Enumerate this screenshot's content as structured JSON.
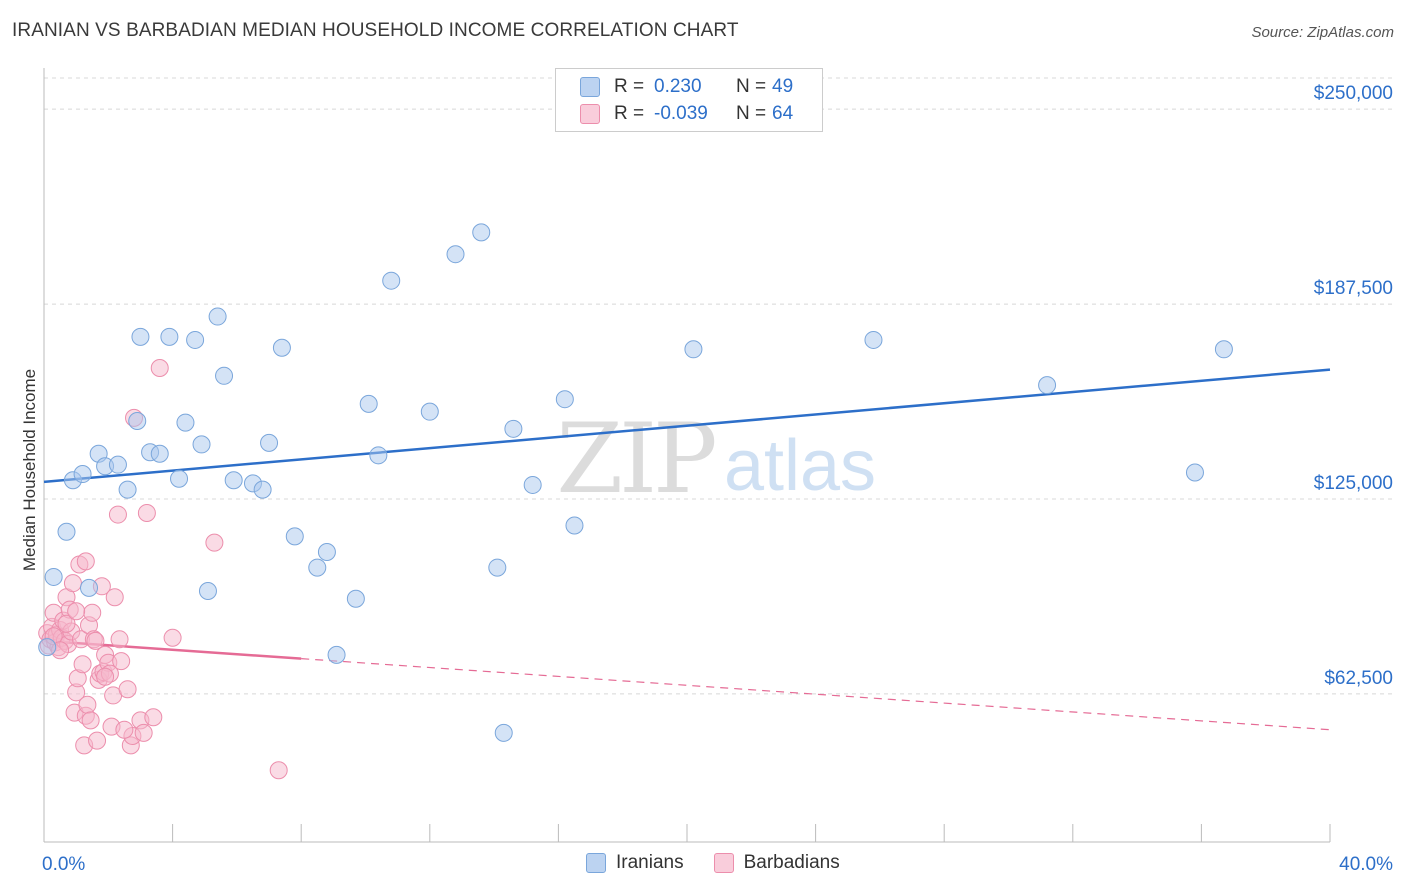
{
  "title": "IRANIAN VS BARBADIAN MEDIAN HOUSEHOLD INCOME CORRELATION CHART",
  "source": "Source: ZipAtlas.com",
  "colors": {
    "iranians_fill": "#aac8ee",
    "iranians_stroke": "#7aa6db",
    "iranians_line": "#2d6fc9",
    "barbadians_fill": "#f6b7cb",
    "barbadians_stroke": "#ec8eac",
    "barbadians_line": "#e56b95",
    "axis_value": "#2d6fc9",
    "grid": "#d8d8d8"
  },
  "legend_top": {
    "rows": [
      {
        "r_label": "R =",
        "r_value": "0.230",
        "n_label": "N =",
        "n_value": "49"
      },
      {
        "r_label": "R =",
        "r_value": "-0.039",
        "n_label": "N =",
        "n_value": "64"
      }
    ]
  },
  "legend_bottom": {
    "items": [
      {
        "label": "Iranians"
      },
      {
        "label": "Barbadians"
      }
    ]
  },
  "watermark": {
    "zip": "ZIP",
    "atlas": "atlas"
  },
  "chart_data": {
    "type": "scatter",
    "title": "IRANIAN VS BARBADIAN MEDIAN HOUSEHOLD INCOME CORRELATION CHART",
    "xlabel": "",
    "ylabel": "Median Household Income",
    "xlim": [
      0,
      40
    ],
    "ylim": [
      15000,
      260000
    ],
    "x_tick_labels": [
      {
        "value": 0,
        "label": "0.0%"
      },
      {
        "value": 40,
        "label": "40.0%"
      }
    ],
    "y_tick_labels": [
      {
        "value": 62500,
        "label": "$62,500"
      },
      {
        "value": 125000,
        "label": "$125,000"
      },
      {
        "value": 187500,
        "label": "$187,500"
      },
      {
        "value": 250000,
        "label": "$250,000"
      }
    ],
    "x_minor_ticks": [
      4,
      8,
      12,
      16,
      20,
      24,
      28,
      32,
      36,
      40
    ],
    "grid": true,
    "series": [
      {
        "name": "Iranians",
        "r": 0.23,
        "n": 49,
        "trend": {
          "x": [
            0,
            40
          ],
          "y": [
            130500,
            166500
          ],
          "dashed_from": null
        },
        "points": [
          [
            0.3,
            100000
          ],
          [
            0.7,
            114500
          ],
          [
            0.9,
            131000
          ],
          [
            1.2,
            133000
          ],
          [
            1.4,
            96500
          ],
          [
            1.7,
            139500
          ],
          [
            1.9,
            135500
          ],
          [
            2.3,
            136000
          ],
          [
            2.6,
            128000
          ],
          [
            2.9,
            150000
          ],
          [
            3.0,
            177000
          ],
          [
            3.3,
            140000
          ],
          [
            3.6,
            139500
          ],
          [
            3.9,
            177000
          ],
          [
            4.2,
            131500
          ],
          [
            4.4,
            149500
          ],
          [
            4.7,
            176000
          ],
          [
            4.9,
            142500
          ],
          [
            5.1,
            95500
          ],
          [
            5.4,
            183500
          ],
          [
            5.6,
            164500
          ],
          [
            5.9,
            131000
          ],
          [
            6.5,
            130000
          ],
          [
            6.8,
            128000
          ],
          [
            7.0,
            143000
          ],
          [
            7.4,
            173500
          ],
          [
            7.8,
            113000
          ],
          [
            8.5,
            103000
          ],
          [
            8.8,
            108000
          ],
          [
            9.1,
            75000
          ],
          [
            9.7,
            93000
          ],
          [
            10.1,
            155500
          ],
          [
            10.4,
            139000
          ],
          [
            10.8,
            195000
          ],
          [
            12.0,
            153000
          ],
          [
            12.8,
            203500
          ],
          [
            13.6,
            210500
          ],
          [
            14.1,
            103000
          ],
          [
            14.3,
            50000
          ],
          [
            14.6,
            147500
          ],
          [
            15.2,
            129500
          ],
          [
            16.2,
            157000
          ],
          [
            16.5,
            116500
          ],
          [
            20.2,
            173000
          ],
          [
            25.8,
            176000
          ],
          [
            31.2,
            161500
          ],
          [
            35.8,
            133500
          ],
          [
            36.7,
            173000
          ],
          [
            0.1,
            77500
          ]
        ]
      },
      {
        "name": "Barbadians",
        "r": -0.039,
        "n": 64,
        "trend": {
          "x": [
            0,
            40
          ],
          "y": [
            79500,
            51000
          ],
          "dashed_from": 8
        },
        "points": [
          [
            0.1,
            82000
          ],
          [
            0.15,
            78000
          ],
          [
            0.2,
            80000
          ],
          [
            0.25,
            84000
          ],
          [
            0.3,
            88500
          ],
          [
            0.35,
            79000
          ],
          [
            0.4,
            81500
          ],
          [
            0.45,
            77500
          ],
          [
            0.5,
            83000
          ],
          [
            0.55,
            80500
          ],
          [
            0.6,
            86000
          ],
          [
            0.65,
            79500
          ],
          [
            0.7,
            93500
          ],
          [
            0.75,
            78500
          ],
          [
            0.8,
            89500
          ],
          [
            0.85,
            82500
          ],
          [
            0.9,
            98000
          ],
          [
            0.95,
            56500
          ],
          [
            1.0,
            63000
          ],
          [
            1.05,
            67500
          ],
          [
            1.1,
            104000
          ],
          [
            1.15,
            80000
          ],
          [
            1.2,
            72000
          ],
          [
            1.25,
            46000
          ],
          [
            1.3,
            55500
          ],
          [
            1.35,
            59000
          ],
          [
            1.4,
            84500
          ],
          [
            1.45,
            54000
          ],
          [
            1.5,
            88500
          ],
          [
            1.55,
            80000
          ],
          [
            1.6,
            79500
          ],
          [
            1.65,
            47500
          ],
          [
            1.7,
            67000
          ],
          [
            1.75,
            69000
          ],
          [
            1.8,
            97000
          ],
          [
            1.85,
            69500
          ],
          [
            1.9,
            75000
          ],
          [
            2.0,
            72500
          ],
          [
            2.05,
            69000
          ],
          [
            2.1,
            52000
          ],
          [
            2.15,
            62000
          ],
          [
            2.2,
            93500
          ],
          [
            2.3,
            120000
          ],
          [
            2.35,
            80000
          ],
          [
            2.4,
            73000
          ],
          [
            2.6,
            64000
          ],
          [
            2.7,
            46000
          ],
          [
            2.75,
            49000
          ],
          [
            2.8,
            151000
          ],
          [
            3.0,
            54000
          ],
          [
            3.1,
            50000
          ],
          [
            3.2,
            120500
          ],
          [
            3.4,
            55000
          ],
          [
            3.6,
            167000
          ],
          [
            4.0,
            80500
          ],
          [
            5.3,
            111000
          ],
          [
            7.3,
            38000
          ],
          [
            0.3,
            81000
          ],
          [
            0.5,
            76500
          ],
          [
            0.7,
            85000
          ],
          [
            1.0,
            89000
          ],
          [
            1.3,
            105000
          ],
          [
            1.9,
            68000
          ],
          [
            2.5,
            51000
          ]
        ]
      }
    ]
  }
}
